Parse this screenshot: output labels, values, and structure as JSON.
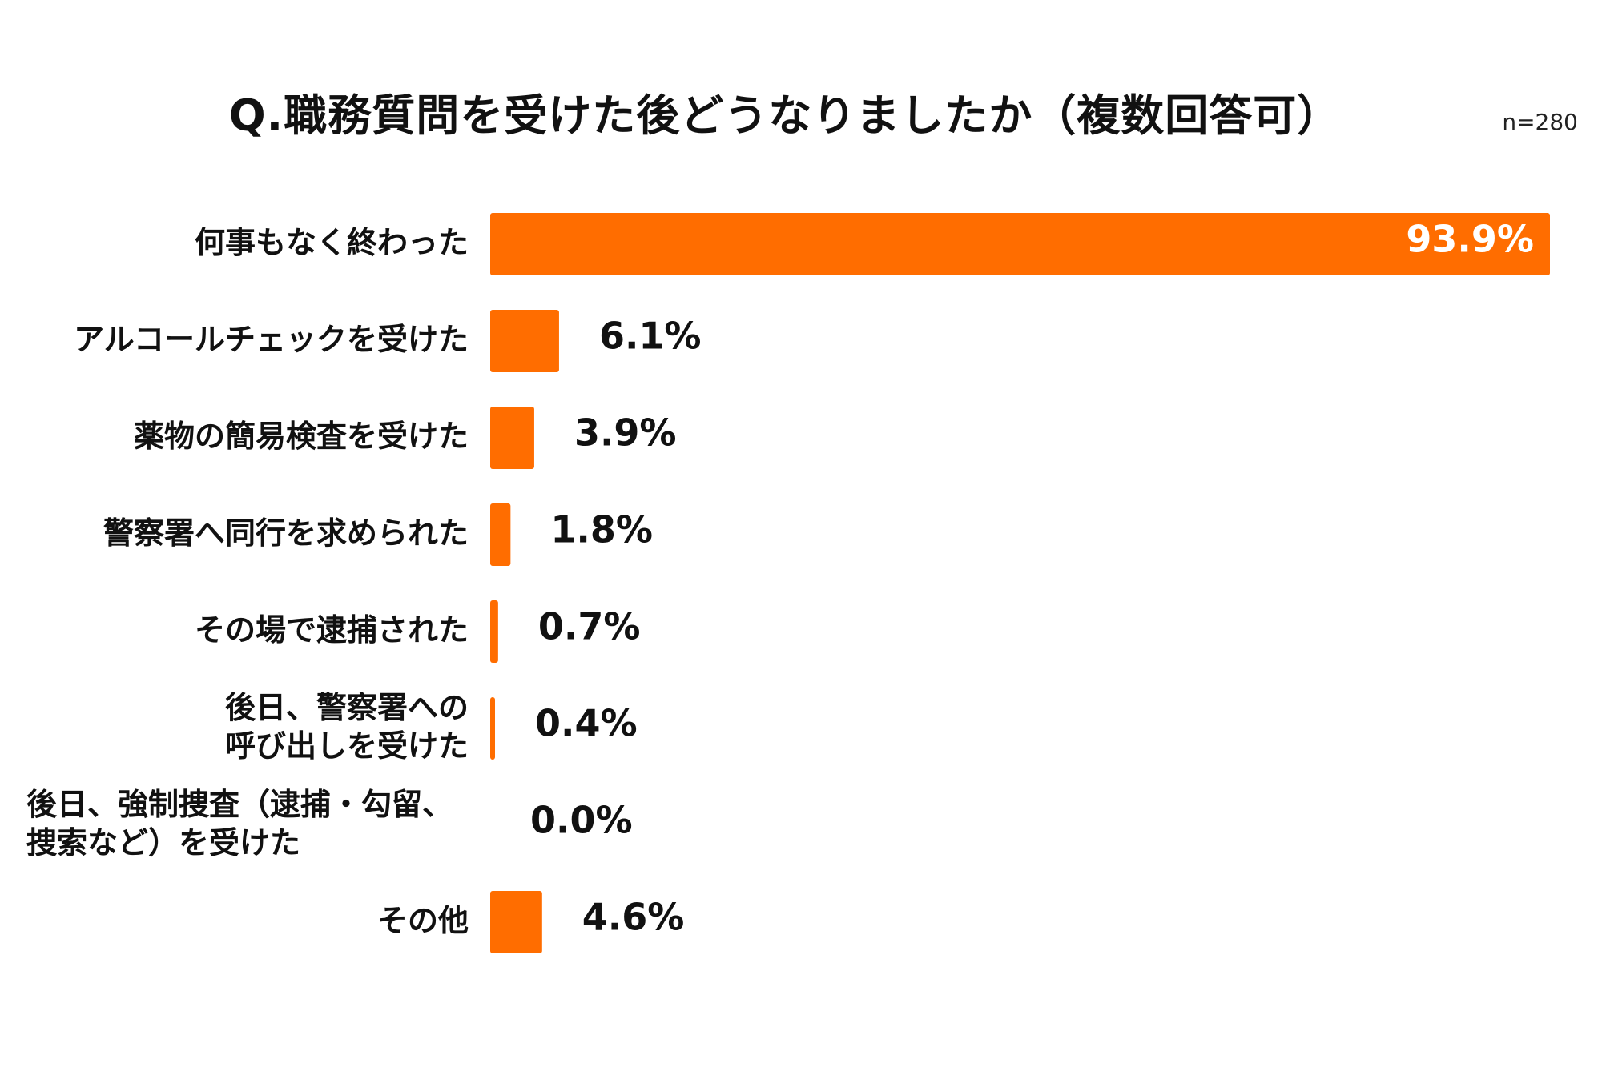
{
  "chart_data": {
    "type": "bar",
    "orientation": "horizontal",
    "title": "Q.職務質問を受けた後どうなりましたか（複数回答可）",
    "note": "n=280",
    "unit": "%",
    "xlim": [
      0,
      93.9
    ],
    "grid": false,
    "legend": "none",
    "bar_color": "#FF6D00",
    "categories": [
      "何事もなく終わった",
      "アルコールチェックを受けた",
      "薬物の簡易検査を受けた",
      "警察署へ同行を求められた",
      "その場で逮捕された",
      "後日、警察署への\n呼び出しを受けた",
      "後日、強制捜査（逮捕・勾留、\n捜索など）を受けた",
      "その他"
    ],
    "values": [
      93.9,
      6.1,
      3.9,
      1.8,
      0.7,
      0.4,
      0.0,
      4.6
    ],
    "value_labels": [
      "93.9%",
      "6.1%",
      "3.9%",
      "1.8%",
      "0.7%",
      "0.4%",
      "0.0%",
      "4.6%"
    ]
  }
}
